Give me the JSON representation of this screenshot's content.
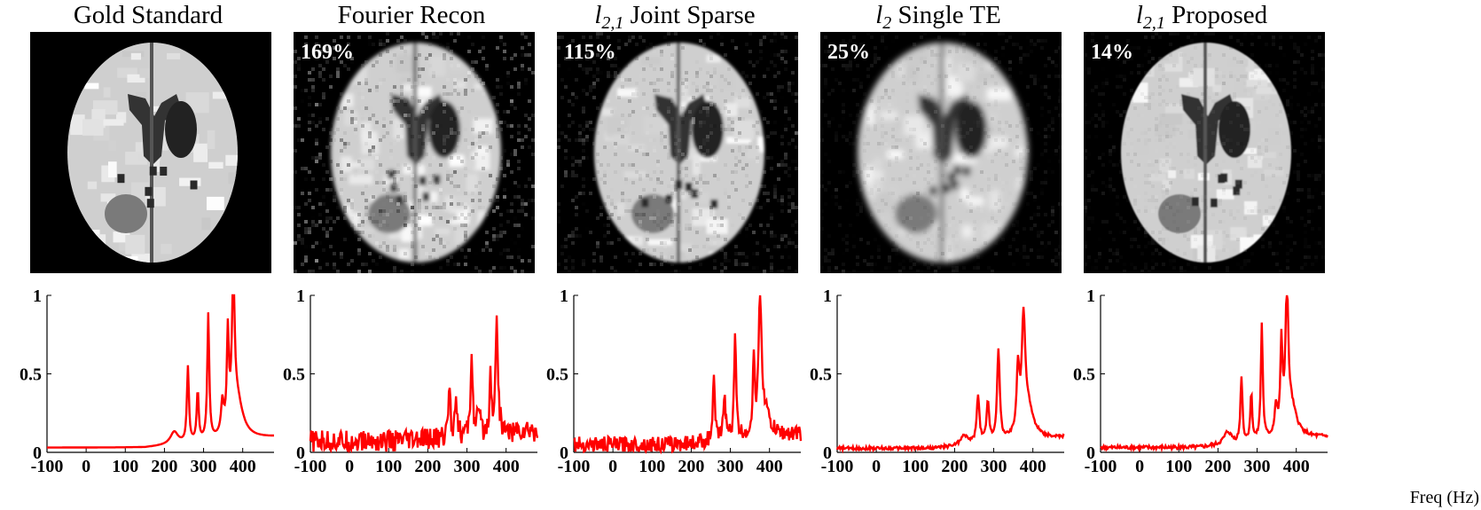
{
  "panels": [
    {
      "title_main": "Gold Standard",
      "title_var": "",
      "title_sub": "",
      "error_pct": "",
      "img_x": 34,
      "noise": 0.0,
      "blur": 0.0
    },
    {
      "title_main": "Fourier Recon",
      "title_var": "",
      "title_sub": "",
      "error_pct": "169%",
      "img_x": 331,
      "noise": 0.45,
      "blur": 2.2
    },
    {
      "title_main": " Joint Sparse",
      "title_var": "l",
      "title_sub": "2,1",
      "error_pct": "115%",
      "img_x": 628,
      "noise": 0.28,
      "blur": 1.6
    },
    {
      "title_main": " Single TE",
      "title_var": "l",
      "title_sub": "2",
      "error_pct": "25%",
      "img_x": 925,
      "noise": 0.12,
      "blur": 3.4
    },
    {
      "title_main": " Proposed",
      "title_var": "l",
      "title_sub": "2,1",
      "error_pct": "14%",
      "img_x": 1222,
      "noise": 0.1,
      "blur": 0.8
    }
  ],
  "axes": {
    "xticks": [
      "-100",
      "0",
      "100",
      "200",
      "300",
      "400"
    ],
    "yticks": [
      "0",
      "0.5",
      "1"
    ],
    "xlabel": "Freq (Hz)"
  },
  "chart_data": [
    {
      "type": "line",
      "x_range": [
        -100,
        480
      ],
      "ylim": [
        0,
        1
      ],
      "series": [
        {
          "color": "#ff0000",
          "peaks": [
            [
              225,
              0.08,
              12
            ],
            [
              260,
              0.48,
              3
            ],
            [
              285,
              0.32,
              3
            ],
            [
              312,
              0.8,
              3
            ],
            [
              348,
              0.2,
              4
            ],
            [
              362,
              0.6,
              3
            ],
            [
              376,
              0.88,
              4
            ],
            [
              385,
              0.25,
              18
            ]
          ],
          "base": 0.03,
          "noise": 0.0
        }
      ]
    },
    {
      "type": "line",
      "x_range": [
        -100,
        480
      ],
      "ylim": [
        0,
        1
      ],
      "series": [
        {
          "color": "#ff0000",
          "peaks": [
            [
              255,
              0.35,
              3
            ],
            [
              272,
              0.3,
              3
            ],
            [
              312,
              0.55,
              3
            ],
            [
              330,
              0.15,
              4
            ],
            [
              360,
              0.35,
              3
            ],
            [
              376,
              0.7,
              4
            ]
          ],
          "base": 0.07,
          "noise": 0.07
        }
      ]
    },
    {
      "type": "line",
      "x_range": [
        -100,
        480
      ],
      "ylim": [
        0,
        1
      ],
      "series": [
        {
          "color": "#ff0000",
          "peaks": [
            [
              258,
              0.38,
              3
            ],
            [
              285,
              0.32,
              3
            ],
            [
              312,
              0.68,
              3
            ],
            [
              360,
              0.45,
              3
            ],
            [
              376,
              0.8,
              4
            ],
            [
              385,
              0.18,
              15
            ]
          ],
          "base": 0.05,
          "noise": 0.05
        }
      ]
    },
    {
      "type": "line",
      "x_range": [
        -100,
        480
      ],
      "ylim": [
        0,
        1
      ],
      "series": [
        {
          "color": "#ff0000",
          "peaks": [
            [
              225,
              0.06,
              12
            ],
            [
              260,
              0.3,
              4
            ],
            [
              285,
              0.25,
              4
            ],
            [
              312,
              0.58,
              4
            ],
            [
              362,
              0.4,
              4
            ],
            [
              376,
              0.65,
              5
            ],
            [
              385,
              0.22,
              18
            ]
          ],
          "base": 0.025,
          "noise": 0.01
        }
      ]
    },
    {
      "type": "line",
      "x_range": [
        -100,
        480
      ],
      "ylim": [
        0,
        1
      ],
      "series": [
        {
          "color": "#ff0000",
          "peaks": [
            [
              225,
              0.08,
              12
            ],
            [
              260,
              0.42,
              3
            ],
            [
              285,
              0.3,
              3
            ],
            [
              312,
              0.74,
              3
            ],
            [
              348,
              0.18,
              4
            ],
            [
              362,
              0.55,
              3
            ],
            [
              376,
              0.85,
              4
            ],
            [
              385,
              0.22,
              18
            ]
          ],
          "base": 0.03,
          "noise": 0.012
        }
      ]
    }
  ]
}
